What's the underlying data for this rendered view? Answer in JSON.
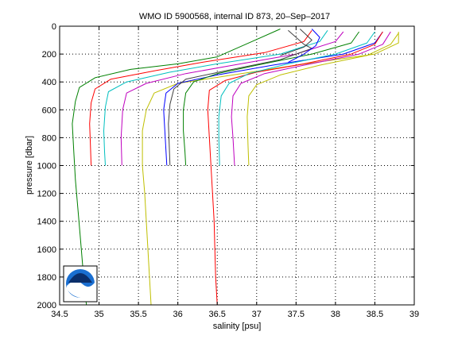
{
  "chart_data": {
    "type": "line",
    "title": "WMO ID 5900568, internal ID 873, 20–Sep–2017",
    "xlabel": "salinity [psu]",
    "ylabel": "pressure [dbar]",
    "xlim": [
      34.5,
      39
    ],
    "ylim": [
      2000,
      0
    ],
    "y_reversed": true,
    "grid": true,
    "grid_style": "dotted",
    "x_ticks": [
      "34.5",
      "35",
      "35.5",
      "36",
      "36.5",
      "37",
      "37.5",
      "38",
      "38.5",
      "39"
    ],
    "y_ticks": [
      "0",
      "200",
      "400",
      "600",
      "800",
      "1000",
      "1200",
      "1400",
      "1600",
      "1800",
      "2000"
    ],
    "logo": "noaa-logo",
    "series": [
      {
        "color": "#008000",
        "points": [
          [
            37.3,
            20
          ],
          [
            36.9,
            120
          ],
          [
            36.5,
            220
          ],
          [
            36.0,
            270
          ],
          [
            35.4,
            310
          ],
          [
            34.95,
            370
          ],
          [
            34.75,
            440
          ],
          [
            34.7,
            540
          ],
          [
            34.66,
            700
          ],
          [
            34.68,
            900
          ],
          [
            34.7,
            1100
          ],
          [
            34.73,
            1300
          ],
          [
            34.76,
            1500
          ],
          [
            34.79,
            1700
          ],
          [
            34.82,
            1900
          ],
          [
            34.84,
            2000
          ]
        ]
      },
      {
        "color": "#ff0000",
        "points": [
          [
            37.7,
            30
          ],
          [
            37.6,
            110
          ],
          [
            37.1,
            190
          ],
          [
            36.3,
            260
          ],
          [
            35.7,
            320
          ],
          [
            35.15,
            380
          ],
          [
            34.95,
            450
          ],
          [
            34.9,
            550
          ],
          [
            34.88,
            700
          ],
          [
            34.89,
            850
          ],
          [
            34.9,
            1000
          ]
        ]
      },
      {
        "color": "#00bfbf",
        "points": [
          [
            37.9,
            30
          ],
          [
            37.8,
            110
          ],
          [
            37.3,
            200
          ],
          [
            36.5,
            270
          ],
          [
            35.9,
            330
          ],
          [
            35.35,
            400
          ],
          [
            35.12,
            470
          ],
          [
            35.08,
            580
          ],
          [
            35.06,
            750
          ],
          [
            35.07,
            900
          ],
          [
            35.08,
            1000
          ]
        ]
      },
      {
        "color": "#bf00bf",
        "points": [
          [
            38.1,
            40
          ],
          [
            38.0,
            110
          ],
          [
            37.5,
            200
          ],
          [
            36.7,
            280
          ],
          [
            36.1,
            340
          ],
          [
            35.6,
            410
          ],
          [
            35.35,
            480
          ],
          [
            35.3,
            600
          ],
          [
            35.28,
            800
          ],
          [
            35.29,
            1000
          ]
        ]
      },
      {
        "color": "#bfbf00",
        "points": [
          [
            38.8,
            40
          ],
          [
            38.8,
            120
          ],
          [
            38.5,
            200
          ],
          [
            37.5,
            280
          ],
          [
            36.7,
            350
          ],
          [
            36.0,
            410
          ],
          [
            35.7,
            480
          ],
          [
            35.6,
            600
          ],
          [
            35.55,
            750
          ],
          [
            35.55,
            1000
          ],
          [
            35.58,
            1200
          ],
          [
            35.61,
            1500
          ],
          [
            35.64,
            1800
          ],
          [
            35.66,
            2000
          ]
        ]
      },
      {
        "color": "#0000ff",
        "points": [
          [
            38.6,
            40
          ],
          [
            38.5,
            120
          ],
          [
            38.1,
            200
          ],
          [
            37.2,
            280
          ],
          [
            36.5,
            350
          ],
          [
            36.0,
            410
          ],
          [
            35.85,
            480
          ],
          [
            35.82,
            600
          ],
          [
            35.84,
            800
          ],
          [
            35.86,
            1000
          ]
        ]
      },
      {
        "color": "#404040",
        "points": [
          [
            37.4,
            30
          ],
          [
            37.6,
            130
          ],
          [
            37.7,
            160
          ],
          [
            37.3,
            240
          ],
          [
            36.6,
            320
          ],
          [
            36.1,
            380
          ],
          [
            35.95,
            450
          ],
          [
            35.9,
            560
          ],
          [
            35.88,
            700
          ],
          [
            35.89,
            850
          ],
          [
            35.9,
            1000
          ]
        ]
      },
      {
        "color": "#008000",
        "points": [
          [
            38.3,
            40
          ],
          [
            38.2,
            120
          ],
          [
            37.7,
            200
          ],
          [
            37.0,
            280
          ],
          [
            36.5,
            340
          ],
          [
            36.2,
            400
          ],
          [
            36.1,
            480
          ],
          [
            36.07,
            600
          ],
          [
            36.07,
            750
          ],
          [
            36.09,
            900
          ],
          [
            36.1,
            1000
          ]
        ]
      },
      {
        "color": "#ff0000",
        "points": [
          [
            38.6,
            40
          ],
          [
            38.5,
            130
          ],
          [
            38.2,
            200
          ],
          [
            37.6,
            270
          ],
          [
            37.0,
            330
          ],
          [
            36.6,
            390
          ],
          [
            36.4,
            460
          ],
          [
            36.38,
            600
          ],
          [
            36.4,
            800
          ],
          [
            36.42,
            1000
          ],
          [
            36.44,
            1200
          ],
          [
            36.46,
            1400
          ],
          [
            36.47,
            1600
          ],
          [
            36.48,
            1800
          ],
          [
            36.5,
            2000
          ]
        ]
      },
      {
        "color": "#00bfbf",
        "points": [
          [
            38.5,
            40
          ],
          [
            38.4,
            120
          ],
          [
            38.0,
            200
          ],
          [
            37.4,
            270
          ],
          [
            36.9,
            340
          ],
          [
            36.65,
            410
          ],
          [
            36.55,
            500
          ],
          [
            36.52,
            650
          ],
          [
            36.52,
            800
          ],
          [
            36.53,
            1000
          ]
        ]
      },
      {
        "color": "#bf00bf",
        "points": [
          [
            38.7,
            40
          ],
          [
            38.6,
            130
          ],
          [
            38.3,
            200
          ],
          [
            37.6,
            280
          ],
          [
            37.1,
            340
          ],
          [
            36.8,
            410
          ],
          [
            36.7,
            500
          ],
          [
            36.68,
            650
          ],
          [
            36.7,
            800
          ],
          [
            36.72,
            1000
          ]
        ]
      },
      {
        "color": "#bfbf00",
        "points": [
          [
            38.8,
            50
          ],
          [
            38.7,
            130
          ],
          [
            38.4,
            210
          ],
          [
            37.8,
            280
          ],
          [
            37.3,
            350
          ],
          [
            37.0,
            420
          ],
          [
            36.9,
            500
          ],
          [
            36.88,
            650
          ],
          [
            36.89,
            850
          ],
          [
            36.9,
            1000
          ]
        ]
      },
      {
        "color": "#0000ff",
        "points": [
          [
            37.7,
            20
          ],
          [
            37.8,
            80
          ],
          [
            37.75,
            140
          ],
          [
            37.6,
            200
          ],
          [
            37.4,
            260
          ]
        ]
      },
      {
        "color": "#404040",
        "points": [
          [
            37.55,
            20
          ],
          [
            37.7,
            100
          ],
          [
            37.6,
            150
          ],
          [
            37.3,
            210
          ]
        ]
      }
    ]
  }
}
